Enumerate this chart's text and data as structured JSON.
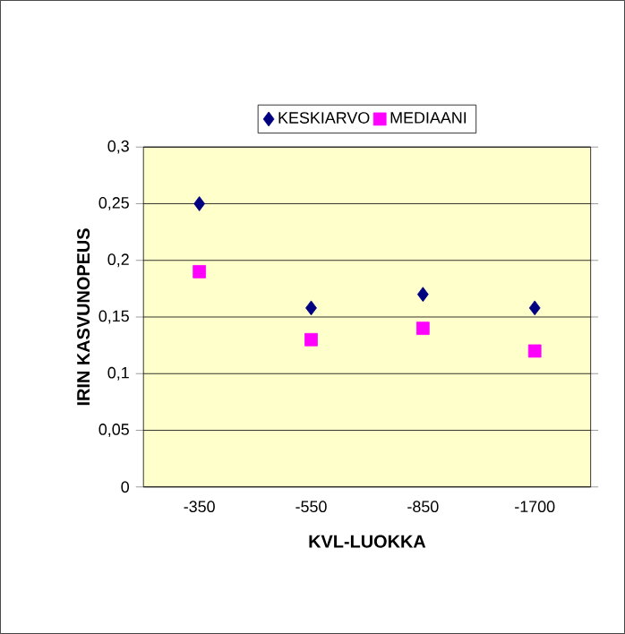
{
  "chart_data": {
    "type": "scatter",
    "xlabel": "KVL-LUOKKA",
    "ylabel": "IRIN KASVUNOPEUS",
    "categories": [
      "-350",
      "-550",
      "-850",
      "-1700"
    ],
    "series": [
      {
        "name": "KESKIARVO",
        "color": "#000080",
        "marker": "diamond",
        "values": [
          0.25,
          0.158,
          0.17,
          0.158
        ]
      },
      {
        "name": "MEDIAANI",
        "color": "#ff00ff",
        "marker": "square",
        "values": [
          0.19,
          0.13,
          0.14,
          0.12
        ]
      }
    ],
    "ylim": [
      0,
      0.3
    ],
    "yticks": [
      0,
      {
        "value": 0.05,
        "label": "0,05"
      },
      {
        "value": 0.1,
        "label": "0,1"
      },
      {
        "value": 0.15,
        "label": "0,15"
      },
      {
        "value": 0.2,
        "label": "0,2"
      },
      {
        "value": 0.25,
        "label": "0,25"
      },
      {
        "value": 0.3,
        "label": "0,3"
      }
    ],
    "grid": "y",
    "legend": "top"
  }
}
